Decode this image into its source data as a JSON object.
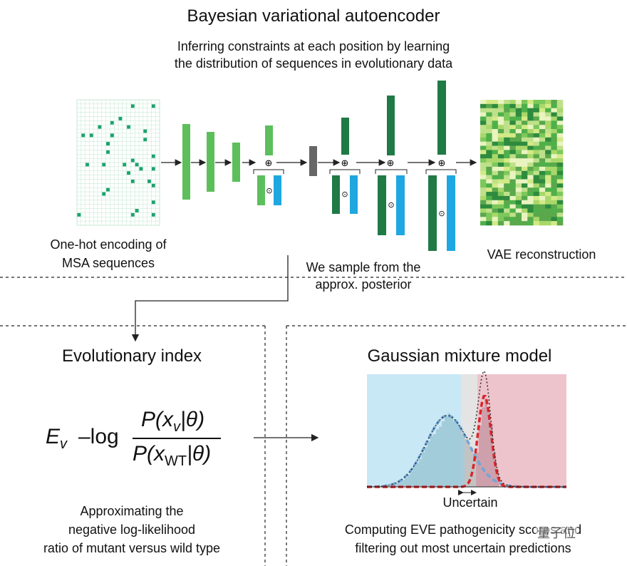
{
  "top": {
    "title": "Bayesian variational autoencoder",
    "subtitle_line1": "Inferring constraints at each position by learning",
    "subtitle_line2": "the distribution of sequences in evolutionary data",
    "left_caption_line1": "One-hot encoding of",
    "left_caption_line2": "MSA sequences",
    "sample_caption_line1": "We sample from the",
    "sample_caption_line2": "approx. posterior",
    "right_caption": "VAE reconstruction"
  },
  "left_panel": {
    "title": "Evolutionary index",
    "formula": {
      "lhs": "E",
      "lhs_sub": "v",
      "minus_log": "–log",
      "num_P": "P(x",
      "num_sub": "v",
      "num_rest": "|θ)",
      "den_P": "P(x",
      "den_sub": "WT",
      "den_rest": "|θ)"
    },
    "caption_line1": "Approximating the",
    "caption_line2": "negative log-likelihood",
    "caption_line3": "ratio of mutant versus wild type"
  },
  "right_panel": {
    "title": "Gaussian mixture model",
    "uncertain_label": "Uncertain",
    "caption_line1": "Computing EVE pathogenicity scores and",
    "caption_line2": "filtering out most uncertain predictions"
  },
  "watermark": "量子位",
  "colors": {
    "green_light": "#5cbf5c",
    "green_dark": "#1f7a45",
    "blue": "#1ea7e0",
    "gray_block": "#666666",
    "benign_bg": "#c9e8f6",
    "pathogenic_bg": "#eec4cc",
    "red_curve": "#d9262b",
    "blue_curve": "#6fa7d6"
  }
}
